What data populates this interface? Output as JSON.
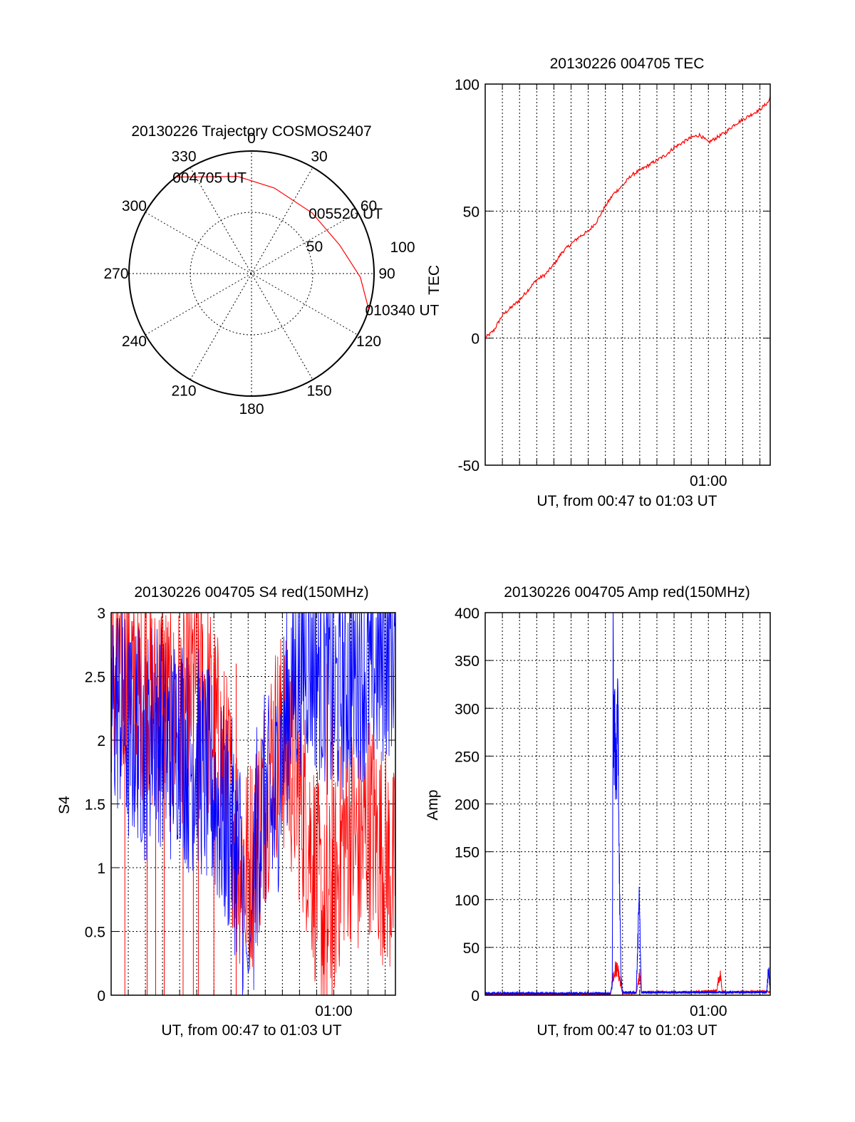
{
  "colors": {
    "red": "#ff0000",
    "blue": "#0000ff",
    "axis": "#000000",
    "grid": "#000000"
  },
  "chart_data": [
    {
      "type": "polar",
      "title": "20130226 Trajectory COSMOS2407",
      "angle_labels": [
        "0",
        "30",
        "60",
        "90",
        "120",
        "150",
        "180",
        "210",
        "240",
        "270",
        "300",
        "330"
      ],
      "radial_labels": [
        "50",
        "100"
      ],
      "track": {
        "color": "red",
        "points": [
          {
            "label": "004705 UT",
            "azimuth": 322,
            "elevation": 0
          },
          {
            "label": "",
            "azimuth": 352,
            "elevation": 18
          },
          {
            "label": "",
            "azimuth": 15,
            "elevation": 25
          },
          {
            "label": "005520 UT",
            "azimuth": 45,
            "elevation": 27
          },
          {
            "label": "",
            "azimuth": 72,
            "elevation": 22
          },
          {
            "label": "",
            "azimuth": 92,
            "elevation": 10
          },
          {
            "label": "010340 UT",
            "azimuth": 107,
            "elevation": 0
          }
        ]
      },
      "grid": true
    },
    {
      "type": "line",
      "title": "20130226 004705 TEC",
      "xlabel": "UT, from 00:47 to 01:03 UT",
      "ylabel": "TEC",
      "x_ticks": [
        "01:00"
      ],
      "ylim": [
        -50,
        100
      ],
      "y_ticks": [
        "-50",
        "0",
        "50",
        "100"
      ],
      "xlim_minutes": [
        0,
        16.6
      ],
      "grid": true,
      "series": [
        {
          "color": "red",
          "x": [
            0,
            0.5,
            1,
            1.5,
            2,
            2.5,
            3,
            3.5,
            4,
            4.5,
            5,
            5.5,
            6,
            6.5,
            7,
            7.5,
            8,
            8.5,
            9,
            9.5,
            10,
            10.5,
            11,
            11.5,
            12,
            12.5,
            13,
            13.5,
            14,
            14.5,
            15,
            15.5,
            16,
            16.5,
            16.6
          ],
          "y": [
            0,
            3,
            9,
            12,
            15,
            19,
            23,
            25,
            29,
            34,
            37,
            40,
            42,
            46,
            52,
            57,
            60,
            64,
            66,
            68,
            70,
            72,
            75,
            77,
            79,
            80,
            77,
            79,
            81,
            84,
            86,
            88,
            90,
            93,
            95
          ]
        }
      ]
    },
    {
      "type": "line",
      "title": "20130226 004705 S4 red(150MHz)",
      "xlabel": "UT, from 00:47 to 01:03 UT",
      "ylabel": "S4",
      "x_ticks": [
        "01:00"
      ],
      "ylim": [
        0,
        3
      ],
      "y_ticks": [
        "0",
        "0.5",
        "1",
        "1.5",
        "2",
        "2.5",
        "3"
      ],
      "xlim_minutes": [
        0,
        16.6
      ],
      "grid": true,
      "series": [
        {
          "color": "red",
          "x": [
            0,
            0.5,
            1,
            1.5,
            2,
            2.5,
            3,
            3.5,
            4,
            4.5,
            5,
            5.5,
            6,
            6.5,
            7,
            7.5,
            8,
            8.5,
            9,
            9.5,
            10,
            10.5,
            11,
            11.5,
            12,
            12.5,
            13,
            13.5,
            14,
            14.5,
            15,
            15.5,
            16,
            16.5
          ],
          "y": [
            2.6,
            2.4,
            2.7,
            2.3,
            2.5,
            2.2,
            2.4,
            2.1,
            2.2,
            2.3,
            2.6,
            2.3,
            2.1,
            1.8,
            1.5,
            1.1,
            1.0,
            1.2,
            1.6,
            1.9,
            2.0,
            1.8,
            1.6,
            1.3,
            0.9,
            0.5,
            0.8,
            1.2,
            1.3,
            1.1,
            1.4,
            1.2,
            1.1,
            0.9
          ],
          "dropouts_at": [
            0.8,
            2.1,
            2.6,
            3.1,
            4.2,
            4.8,
            5.1,
            6.0,
            7.3,
            12.6,
            12.9
          ]
        },
        {
          "color": "blue",
          "x": [
            0,
            0.5,
            1,
            1.5,
            2,
            2.5,
            3,
            3.5,
            4,
            4.5,
            5,
            5.5,
            6,
            6.5,
            7,
            7.5,
            8,
            8.5,
            9,
            9.5,
            10,
            10.5,
            11,
            11.5,
            12,
            12.5,
            13,
            13.5,
            14,
            14.5,
            15,
            15.5,
            16,
            16.5
          ],
          "y": [
            2.2,
            2.3,
            2.0,
            2.1,
            1.9,
            2.2,
            2.0,
            1.9,
            2.1,
            1.8,
            1.9,
            1.7,
            1.6,
            1.4,
            1.3,
            1.1,
            0.15,
            1.3,
            1.5,
            1.4,
            2.0,
            2.4,
            2.6,
            2.7,
            2.6,
            2.5,
            2.3,
            2.4,
            2.5,
            2.6,
            2.5,
            2.6,
            2.7,
            2.8
          ]
        }
      ]
    },
    {
      "type": "line",
      "title": "20130226 004705 Amp red(150MHz)",
      "xlabel": "UT, from 00:47 to 01:03 UT",
      "ylabel": "Amp",
      "x_ticks": [
        "01:00"
      ],
      "ylim": [
        0,
        400
      ],
      "y_ticks": [
        "0",
        "50",
        "100",
        "150",
        "200",
        "250",
        "300",
        "350",
        "400"
      ],
      "xlim_minutes": [
        0,
        16.6
      ],
      "grid": true,
      "series": [
        {
          "color": "blue",
          "x": [
            0,
            7.3,
            7.4,
            7.45,
            7.5,
            7.6,
            7.7,
            7.75,
            7.8,
            7.9,
            8.0,
            8.8,
            8.9,
            8.95,
            9.0,
            9.05,
            9.1,
            12.9,
            14.0,
            16.4,
            16.5,
            16.6
          ],
          "y": [
            2,
            2,
            10,
            335,
            285,
            240,
            260,
            285,
            150,
            20,
            3,
            3,
            60,
            115,
            105,
            30,
            3,
            3,
            3,
            3,
            30,
            3
          ],
          "spikes": [
            {
              "from": 7.4,
              "to": 7.9,
              "max": 335
            },
            {
              "from": 8.85,
              "to": 9.1,
              "max": 115
            }
          ]
        },
        {
          "color": "red",
          "x": [
            0,
            7.3,
            7.45,
            7.6,
            7.75,
            7.9,
            8.0,
            8.8,
            8.9,
            9.0,
            9.1,
            11.8,
            13.0,
            13.5,
            13.6,
            13.7,
            13.8,
            14.0,
            16.4,
            16.6
          ],
          "y": [
            1,
            1,
            20,
            28,
            25,
            10,
            2,
            2,
            12,
            22,
            3,
            3,
            4,
            5,
            18,
            20,
            4,
            3,
            4,
            3
          ]
        }
      ]
    }
  ]
}
